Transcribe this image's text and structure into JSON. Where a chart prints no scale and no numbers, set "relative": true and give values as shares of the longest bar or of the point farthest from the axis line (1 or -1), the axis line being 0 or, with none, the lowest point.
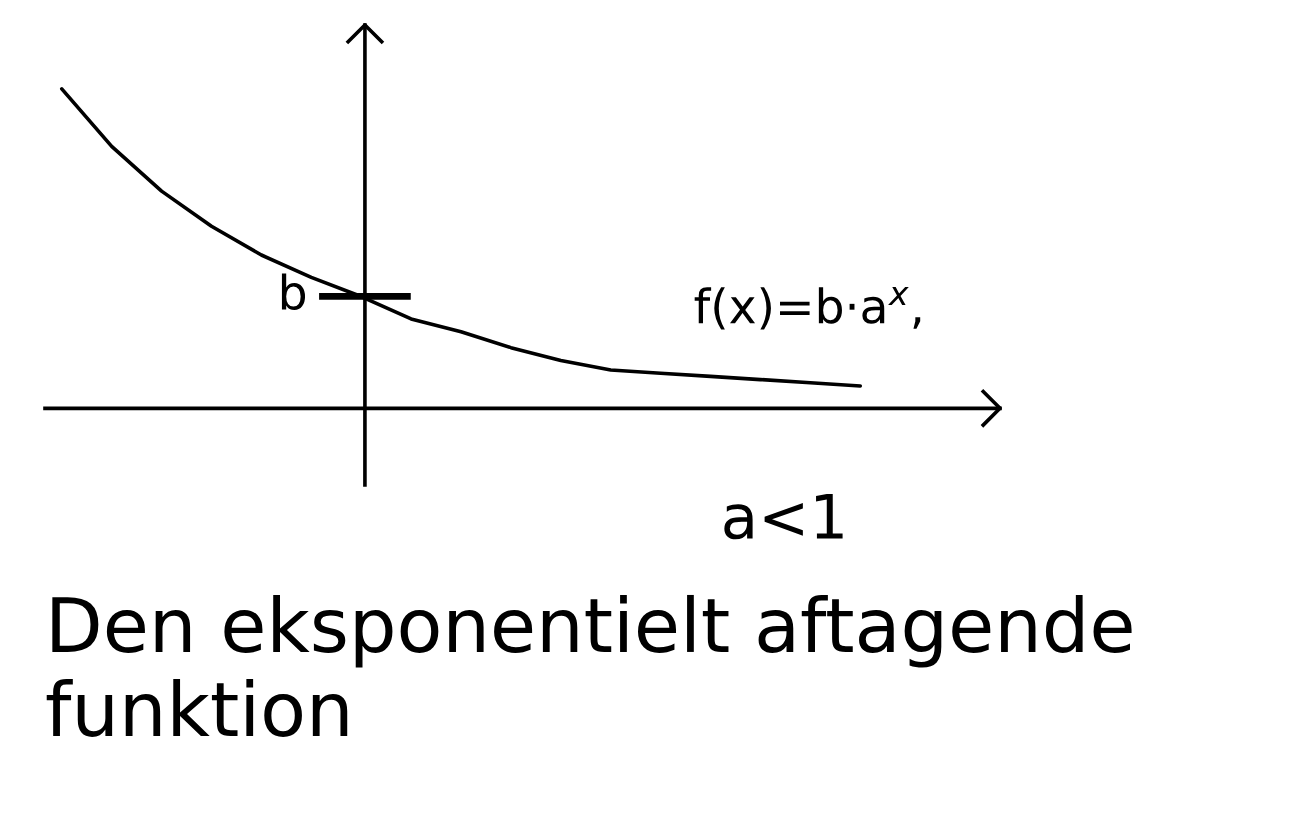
{
  "chart_data": {
    "type": "line",
    "title": "Den eksponentielt aftagende funktion",
    "categories": [
      null,
      null,
      null,
      null,
      null,
      null,
      null,
      null,
      null,
      null,
      null,
      null,
      null,
      null,
      null,
      null,
      null
    ],
    "relative": true,
    "series": [
      {
        "name": "f(x)=b·a$^{x}$,",
        "color": "#000000",
        "values": [
          1.0,
          0.82,
          0.68,
          0.57,
          0.48,
          0.41,
          0.35,
          0.28,
          0.24,
          0.19,
          0.15,
          0.12,
          0.11,
          0.1,
          0.09,
          0.08,
          0.07
        ]
      }
    ],
    "annotations": [
      "b",
      "a<1"
    ]
  }
}
